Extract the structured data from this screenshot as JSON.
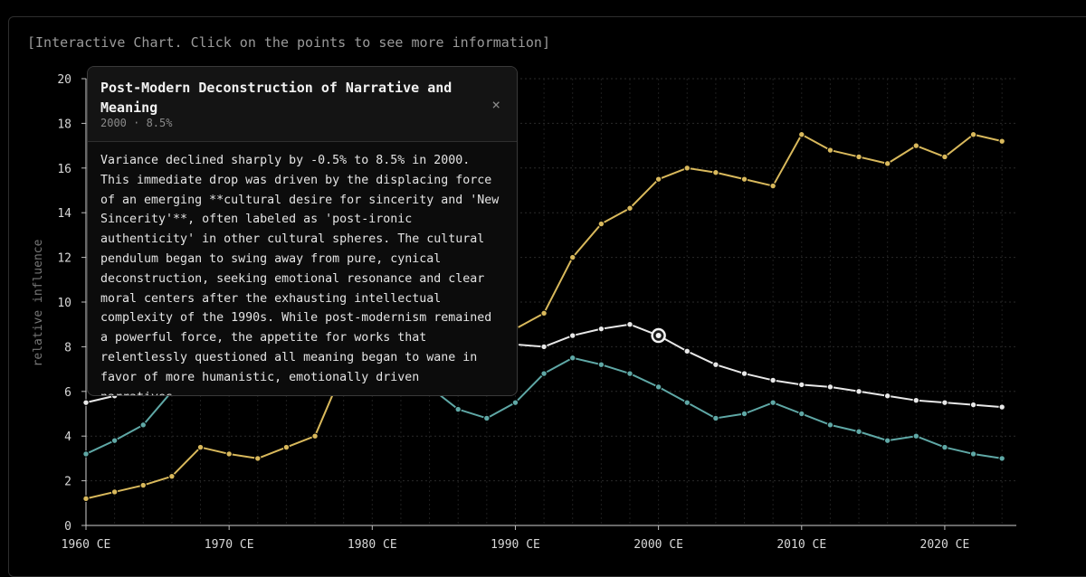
{
  "caption": "[Interactive Chart. Click on the points to see more information]",
  "tooltip": {
    "title": "Post-Modern Deconstruction of Narrative and Meaning",
    "meta": "2000 · 8.5%",
    "close_label": "×",
    "body": "Variance declined sharply by -0.5% to 8.5% in 2000. This immediate drop was driven by the displacing force of an emerging **cultural desire for sincerity and 'New Sincerity'**, often labeled as 'post-ironic authenticity' in other cultural spheres. The cultural pendulum began to swing away from pure, cynical deconstruction, seeking emotional resonance and clear moral centers after the exhausting intellectual complexity of the 1990s. While post-modernism remained a powerful force, the appetite for works that relentlessly questioned all meaning began to wane in favor of more humanistic, emotionally driven narratives."
  },
  "chart_data": {
    "type": "line",
    "title": "",
    "xlabel": "",
    "ylabel": "relative influence",
    "xlim": [
      1960,
      2025
    ],
    "ylim": [
      0,
      20
    ],
    "x_ticks": [
      1960,
      1970,
      1980,
      1990,
      2000,
      2010,
      2020
    ],
    "x_tick_labels": [
      "1960 CE",
      "1970 CE",
      "1980 CE",
      "1990 CE",
      "2000 CE",
      "2010 CE",
      "2020 CE"
    ],
    "y_ticks": [
      0,
      2,
      4,
      6,
      8,
      10,
      12,
      14,
      16,
      18,
      20
    ],
    "y_tick_labels": [
      "0",
      "2",
      "4",
      "6",
      "8",
      "10",
      "12",
      "14",
      "16",
      "18",
      "20"
    ],
    "x": [
      1960,
      1962,
      1964,
      1966,
      1968,
      1970,
      1972,
      1974,
      1976,
      1978,
      1980,
      1982,
      1984,
      1986,
      1988,
      1990,
      1992,
      1994,
      1996,
      1998,
      2000,
      2002,
      2004,
      2006,
      2008,
      2010,
      2012,
      2014,
      2016,
      2018,
      2020,
      2022,
      2024
    ],
    "series": [
      {
        "name": "Post-Modern Deconstruction of Narrative and Meaning",
        "color": "#e8e8e8",
        "values": [
          5.5,
          5.8,
          6.1,
          6.5,
          6.9,
          7.2,
          7.5,
          7.8,
          8.0,
          8.2,
          8.4,
          8.5,
          8.5,
          8.4,
          8.3,
          8.1,
          8.0,
          8.5,
          8.8,
          9.0,
          8.5,
          7.8,
          7.2,
          6.8,
          6.5,
          6.3,
          6.2,
          6.0,
          5.8,
          5.6,
          5.5,
          5.4,
          5.3
        ]
      },
      {
        "name": "series-gold",
        "color": "#d9b95c",
        "values": [
          1.2,
          1.5,
          1.8,
          2.2,
          3.5,
          3.2,
          3.0,
          3.5,
          4.0,
          7.0,
          7.6,
          7.8,
          8.0,
          8.2,
          8.4,
          8.8,
          9.5,
          12.0,
          13.5,
          14.2,
          15.5,
          16.0,
          15.8,
          15.5,
          15.2,
          17.5,
          16.8,
          16.5,
          16.2,
          17.0,
          16.5,
          17.5,
          17.2
        ]
      },
      {
        "name": "series-teal",
        "color": "#5fa8a6",
        "values": [
          3.2,
          3.8,
          4.5,
          6.0,
          6.4,
          6.8,
          7.0,
          7.1,
          7.0,
          6.9,
          6.8,
          6.6,
          6.2,
          5.2,
          4.8,
          5.5,
          6.8,
          7.5,
          7.2,
          6.8,
          6.2,
          5.5,
          4.8,
          5.0,
          5.5,
          5.0,
          4.5,
          4.2,
          3.8,
          4.0,
          3.5,
          3.2,
          3.0
        ]
      }
    ],
    "selected": {
      "series": 0,
      "x": 2000,
      "value": 8.5
    },
    "grid": true
  }
}
